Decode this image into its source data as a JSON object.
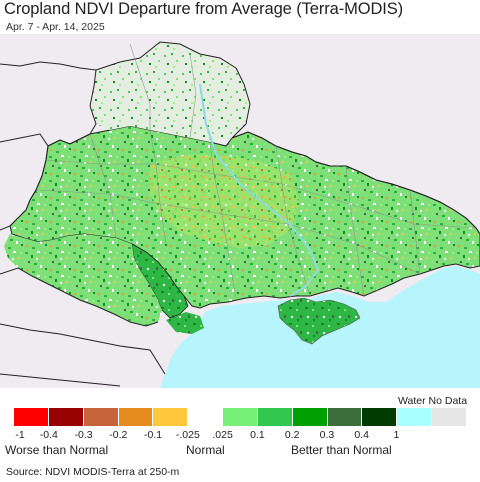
{
  "title": "Cropland NDVI Departure from Average (Terra-MODIS)",
  "subtitle": "Apr. 7 - Apr. 14, 2025",
  "legend": {
    "no_data_label": "Water No Data",
    "swatches": [
      {
        "color": "#ff0000"
      },
      {
        "color": "#990000"
      },
      {
        "color": "#c8643c"
      },
      {
        "color": "#e68c1e"
      },
      {
        "color": "#ffc83c"
      },
      {
        "color": "#ffffff"
      },
      {
        "color": "#78f078"
      },
      {
        "color": "#32c850"
      },
      {
        "color": "#00a000"
      },
      {
        "color": "#3c6e3c"
      },
      {
        "color": "#003c00"
      },
      {
        "color": "#aaffff"
      },
      {
        "color": "#e6e6e6"
      }
    ],
    "ticks": [
      "-1",
      "-0.4",
      "-0.3",
      "-0.2",
      "-0.1",
      "-.025",
      ".025",
      "0.1",
      "0.2",
      "0.3",
      "0.4",
      "1"
    ],
    "categories": {
      "worse": "Worse than Normal",
      "normal": "Normal",
      "better": "Better than Normal"
    }
  },
  "map_colors": {
    "land_background": "#efebf1",
    "sea": "#b5f5fb",
    "borders": "#222222",
    "oblast_lines": "#8a8a8a"
  },
  "source": "Source: NDVI MODIS-Terra at 250-m"
}
